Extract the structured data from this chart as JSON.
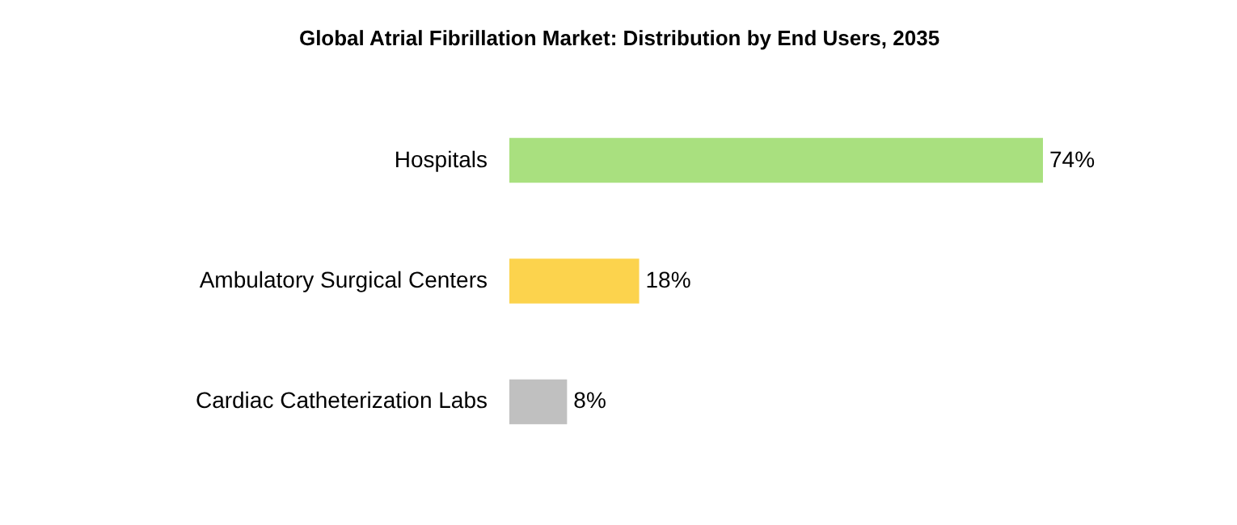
{
  "chart_data": {
    "type": "bar",
    "orientation": "horizontal",
    "title": "Global Atrial Fibrillation Market: Distribution by End Users, 2035",
    "categories": [
      "Hospitals",
      "Ambulatory Surgical Centers",
      "Cardiac Catheterization Labs"
    ],
    "values": [
      74,
      18,
      8
    ],
    "value_labels": [
      "74%",
      "18%",
      "8%"
    ],
    "colors": [
      "#a9e07f",
      "#fcd34d",
      "#c0c0c0"
    ]
  }
}
